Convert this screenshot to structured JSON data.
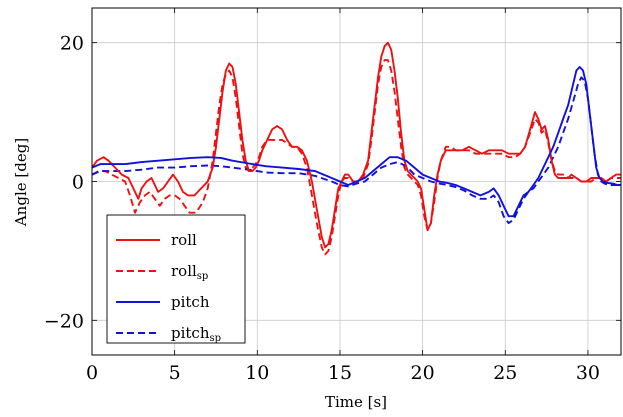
{
  "chart_data": {
    "type": "line",
    "xlabel": "Time [s]",
    "ylabel": "Angle [deg]",
    "xlim": [
      0,
      32
    ],
    "ylim": [
      -25,
      25
    ],
    "xticks": [
      0,
      5,
      10,
      15,
      20,
      25,
      30
    ],
    "yticks": [
      -20,
      0,
      20
    ],
    "grid": true,
    "legend_position": "bottom-left",
    "series": [
      {
        "name": "roll",
        "sub": "",
        "color": "#ee1111",
        "dash": "solid",
        "x": [
          0,
          0.3,
          0.7,
          1.0,
          1.4,
          1.8,
          2.2,
          2.5,
          2.8,
          3.0,
          3.3,
          3.6,
          4.0,
          4.3,
          4.6,
          4.9,
          5.2,
          5.5,
          5.8,
          6.2,
          6.6,
          7.0,
          7.3,
          7.5,
          7.7,
          7.9,
          8.1,
          8.3,
          8.5,
          8.7,
          8.9,
          9.1,
          9.3,
          9.5,
          9.7,
          9.9,
          10.1,
          10.3,
          10.6,
          10.9,
          11.2,
          11.5,
          11.8,
          12.1,
          12.4,
          12.7,
          13.0,
          13.3,
          13.6,
          13.9,
          14.1,
          14.3,
          14.5,
          14.7,
          14.9,
          15.1,
          15.3,
          15.5,
          15.8,
          16.1,
          16.4,
          16.7,
          16.9,
          17.1,
          17.3,
          17.5,
          17.7,
          17.9,
          18.1,
          18.3,
          18.5,
          18.7,
          18.9,
          19.1,
          19.3,
          19.5,
          19.7,
          19.9,
          20.1,
          20.3,
          20.5,
          20.7,
          20.9,
          21.1,
          21.4,
          21.7,
          22.0,
          22.4,
          22.8,
          23.2,
          23.6,
          24.0,
          24.4,
          24.8,
          25.2,
          25.6,
          25.9,
          26.2,
          26.5,
          26.8,
          27.0,
          27.2,
          27.4,
          27.6,
          27.8,
          28.0,
          28.2,
          28.4,
          28.6,
          28.8,
          29.0,
          29.3,
          29.6,
          29.9,
          30.2,
          30.5,
          30.8,
          31.1,
          31.4,
          31.7,
          32.0
        ],
        "y": [
          2,
          3,
          3.5,
          3,
          2,
          1,
          0.5,
          -1,
          -2.5,
          -1,
          0,
          0.5,
          -1.5,
          -1,
          0,
          1,
          0,
          -1.5,
          -2,
          -2,
          -1,
          0,
          2,
          5,
          9,
          13,
          16,
          17,
          16.5,
          14,
          10,
          6,
          3,
          1.5,
          1.5,
          2,
          3,
          4.5,
          6,
          7.5,
          8,
          7.5,
          6,
          5,
          5,
          4.5,
          3,
          0,
          -4,
          -8,
          -9.5,
          -9,
          -7,
          -4,
          -1,
          0,
          1,
          1,
          0,
          0,
          1,
          3,
          7,
          11,
          15,
          18,
          19.5,
          20,
          19,
          16,
          12,
          7,
          3,
          1.5,
          1,
          0.5,
          0,
          -1,
          -4,
          -7,
          -6,
          -2,
          1,
          3,
          4.5,
          4.5,
          4.5,
          4.5,
          5,
          4.5,
          4,
          4.5,
          4.5,
          4.5,
          4,
          4,
          4,
          5,
          7.5,
          10,
          9,
          7.5,
          8,
          6,
          3,
          1,
          0.5,
          0.5,
          0.5,
          0.5,
          1,
          0.5,
          0,
          0,
          0.5,
          0.5,
          0.5,
          0,
          0.5,
          1,
          1
        ]
      },
      {
        "name": "roll",
        "sub": "sp",
        "color": "#ee1111",
        "dash": "dashed",
        "x": [
          0,
          0.4,
          0.8,
          1.2,
          1.6,
          2.0,
          2.3,
          2.6,
          2.9,
          3.2,
          3.5,
          3.8,
          4.1,
          4.4,
          4.7,
          5.0,
          5.3,
          5.6,
          5.9,
          6.3,
          6.7,
          7.0,
          7.3,
          7.5,
          7.7,
          7.9,
          8.1,
          8.3,
          8.5,
          8.7,
          8.9,
          9.1,
          9.3,
          9.5,
          9.7,
          9.9,
          10.1,
          10.3,
          10.6,
          10.9,
          11.2,
          11.5,
          11.8,
          12.1,
          12.4,
          12.7,
          13.0,
          13.3,
          13.6,
          13.9,
          14.1,
          14.3,
          14.5,
          14.7,
          14.9,
          15.1,
          15.3,
          15.5,
          15.8,
          16.1,
          16.4,
          16.7,
          16.9,
          17.1,
          17.3,
          17.5,
          17.7,
          17.9,
          18.1,
          18.3,
          18.5,
          18.7,
          18.9,
          19.1,
          19.3,
          19.5,
          19.7,
          19.9,
          20.1,
          20.3,
          20.5,
          20.7,
          20.9,
          21.1,
          21.4,
          21.7,
          22.0,
          22.4,
          22.8,
          23.2,
          23.6,
          24.0,
          24.4,
          24.8,
          25.2,
          25.6,
          25.9,
          26.2,
          26.5,
          26.8,
          27.0,
          27.2,
          27.4,
          27.6,
          27.8,
          28.0,
          28.2,
          28.4,
          28.6,
          28.8,
          29.0,
          29.3,
          29.6,
          29.9,
          30.2,
          30.5,
          30.8,
          31.1,
          31.4,
          31.7,
          32.0
        ],
        "y": [
          1,
          1.5,
          1.5,
          1,
          0.5,
          0,
          -2,
          -4.5,
          -3,
          -2,
          -1.5,
          -2.5,
          -3.5,
          -2.5,
          -2,
          -2,
          -2.5,
          -3.5,
          -4.5,
          -4.5,
          -3,
          -1,
          3,
          7,
          11,
          14,
          15.5,
          16,
          15,
          12,
          8,
          4,
          2,
          1.5,
          2,
          2.5,
          3.5,
          5,
          6,
          6,
          6,
          6,
          5.5,
          5,
          5,
          4,
          2,
          -2,
          -6,
          -9.5,
          -10.5,
          -10,
          -8,
          -5,
          -2,
          0,
          0.5,
          0.5,
          0,
          0,
          0.5,
          2.5,
          6,
          10,
          14,
          16.5,
          17.5,
          17.5,
          16,
          13,
          9,
          5,
          2,
          1,
          0.5,
          0,
          -0.5,
          -2,
          -5,
          -7,
          -6,
          -3,
          0.5,
          3,
          5,
          5,
          4.5,
          4.5,
          4.5,
          4,
          4,
          4,
          4,
          4,
          3.5,
          3.5,
          4,
          5,
          7,
          9,
          8.5,
          7,
          7.5,
          5.5,
          3,
          1.5,
          1,
          1,
          1,
          0.5,
          0.5,
          0.5,
          0,
          0,
          0,
          0.5,
          0.5,
          0,
          0.5,
          0.5,
          0.5
        ]
      },
      {
        "name": "pitch",
        "sub": "",
        "color": "#1111dd",
        "dash": "solid",
        "x": [
          0,
          0.5,
          1,
          2,
          3,
          4,
          5,
          6,
          7,
          7.8,
          8.5,
          9.5,
          10.5,
          11.5,
          12.5,
          13.5,
          14.5,
          15,
          15.5,
          16,
          16.5,
          17,
          17.5,
          18,
          18.5,
          19,
          19.5,
          20,
          20.5,
          21,
          21.5,
          22,
          22.5,
          23,
          23.5,
          24,
          24.3,
          24.6,
          24.9,
          25.2,
          25.5,
          25.8,
          26.1,
          26.4,
          26.7,
          27,
          27.3,
          27.6,
          27.9,
          28.2,
          28.5,
          28.8,
          29.1,
          29.3,
          29.5,
          29.7,
          29.9,
          30.1,
          30.3,
          30.5,
          30.7,
          30.9,
          31.2,
          31.5,
          31.8,
          32
        ],
        "y": [
          2,
          2.5,
          2.5,
          2.5,
          2.8,
          3,
          3.2,
          3.4,
          3.5,
          3.4,
          3.0,
          2.6,
          2.2,
          2.0,
          1.8,
          1.5,
          0.5,
          0,
          -0.5,
          0,
          0.5,
          1.5,
          2.5,
          3.5,
          3.5,
          3,
          2,
          1,
          0.5,
          0,
          -0.2,
          -0.5,
          -1,
          -1.5,
          -2,
          -1.5,
          -1,
          -2,
          -3.5,
          -5,
          -5,
          -3.5,
          -2,
          -1.5,
          -0.5,
          0.5,
          2,
          3.5,
          5,
          7,
          9,
          11,
          14,
          16,
          16.5,
          16,
          14,
          10,
          6,
          2,
          0.5,
          0,
          -0.2,
          -0.3,
          -0.5,
          -0.5
        ]
      },
      {
        "name": "pitch",
        "sub": "sp",
        "color": "#1111dd",
        "dash": "dashed",
        "x": [
          0,
          0.5,
          1,
          2,
          3,
          4,
          5,
          6,
          7,
          7.8,
          8.5,
          9.5,
          10.5,
          11.5,
          12.5,
          13.5,
          14.5,
          15,
          15.5,
          16,
          16.5,
          17,
          17.5,
          18,
          18.5,
          19,
          19.5,
          20,
          20.5,
          21,
          21.5,
          22,
          22.5,
          23,
          23.5,
          24,
          24.3,
          24.6,
          24.9,
          25.2,
          25.5,
          25.8,
          26.1,
          26.4,
          26.7,
          27,
          27.3,
          27.6,
          27.9,
          28.2,
          28.5,
          28.8,
          29.1,
          29.4,
          29.6,
          29.8,
          30.0,
          30.2,
          30.4,
          30.6,
          30.8,
          31.0,
          31.3,
          31.6,
          32
        ],
        "y": [
          1,
          1.5,
          1.5,
          1.5,
          1.7,
          2,
          2,
          2.2,
          2.3,
          2.2,
          2,
          1.7,
          1.3,
          1.2,
          1.2,
          0.8,
          0,
          -0.5,
          -0.7,
          -0.3,
          0,
          1,
          2,
          2.5,
          2.8,
          2.2,
          1,
          0.5,
          0,
          -0.3,
          -0.5,
          -0.8,
          -1.3,
          -2,
          -2.5,
          -2.5,
          -2,
          -3,
          -5,
          -6,
          -5.5,
          -4,
          -2.5,
          -1.5,
          -1,
          0,
          1,
          2,
          3.5,
          5,
          7,
          9,
          11.5,
          14,
          15,
          14.5,
          12,
          8,
          4,
          1,
          0,
          -0.3,
          -0.5,
          -0.5,
          -0.5
        ]
      }
    ]
  }
}
